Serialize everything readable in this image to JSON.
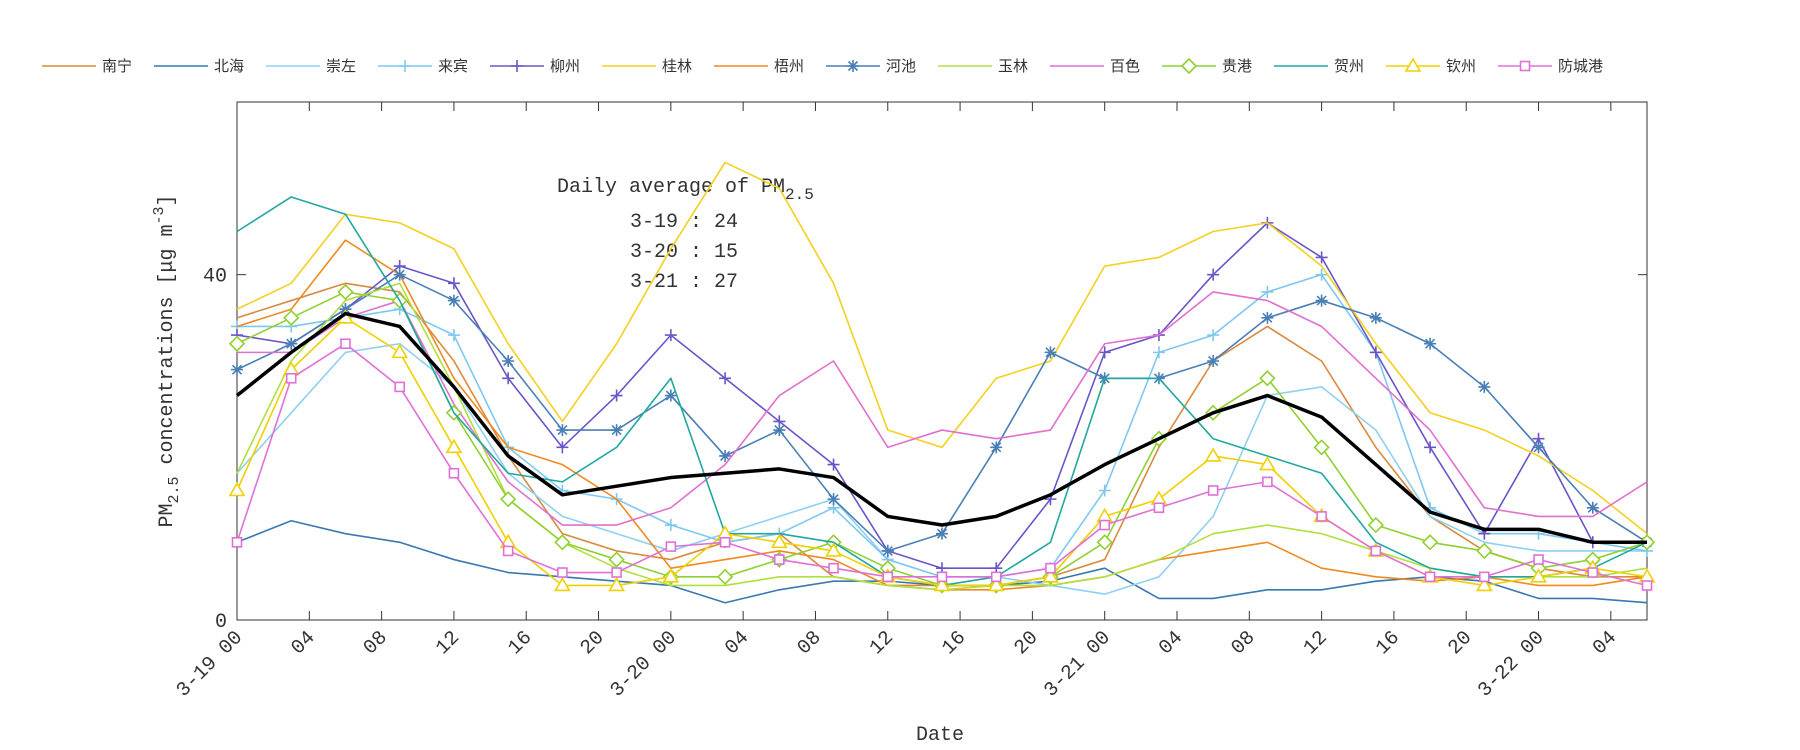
{
  "chart_data": {
    "type": "line",
    "x_label": "Date",
    "y_label": {
      "main": "PM",
      "sub": "2.5",
      "mid": " concentrations [μg m",
      "sup": "-3",
      "end": "]"
    },
    "annotation": {
      "title": "Daily average of PM",
      "title_sub": "2.5",
      "lines": [
        "3-19 : 24",
        "3-20 : 15",
        "3-21 : 27"
      ]
    },
    "x": [
      0,
      3,
      6,
      9,
      12,
      15,
      18,
      21,
      24,
      27,
      30,
      33,
      36,
      39,
      42,
      45,
      48,
      51,
      54,
      57,
      60,
      63,
      66,
      69,
      72,
      75,
      78
    ],
    "xlim": [
      0,
      78
    ],
    "xticks": [
      {
        "value": 0,
        "label": "3-19 00"
      },
      {
        "value": 4,
        "label": "04"
      },
      {
        "value": 8,
        "label": "08"
      },
      {
        "value": 12,
        "label": "12"
      },
      {
        "value": 16,
        "label": "16"
      },
      {
        "value": 20,
        "label": "20"
      },
      {
        "value": 24,
        "label": "3-20 00"
      },
      {
        "value": 28,
        "label": "04"
      },
      {
        "value": 32,
        "label": "08"
      },
      {
        "value": 36,
        "label": "12"
      },
      {
        "value": 40,
        "label": "16"
      },
      {
        "value": 44,
        "label": "20"
      },
      {
        "value": 48,
        "label": "3-21 00"
      },
      {
        "value": 52,
        "label": "04"
      },
      {
        "value": 56,
        "label": "08"
      },
      {
        "value": 60,
        "label": "12"
      },
      {
        "value": 64,
        "label": "16"
      },
      {
        "value": 68,
        "label": "20"
      },
      {
        "value": 72,
        "label": "3-22 00"
      },
      {
        "value": 76,
        "label": "04"
      }
    ],
    "ylim": [
      0,
      60
    ],
    "yticks": [
      0,
      40
    ],
    "series": [
      {
        "name": "南宁",
        "color": "#d98a3e",
        "values": [
          35,
          37,
          39,
          38,
          30,
          19,
          10,
          8,
          7,
          9,
          10,
          5,
          4,
          4,
          4,
          5,
          7,
          20,
          30,
          34,
          30,
          20,
          12,
          8,
          6,
          5,
          5
        ]
      },
      {
        "name": "北海",
        "color": "#3a78b0",
        "values": [
          9,
          11.5,
          10,
          9,
          7,
          5.5,
          5,
          4.5,
          4,
          2,
          3.5,
          4.5,
          4.5,
          4,
          4,
          4.5,
          6,
          2.5,
          2.5,
          3.5,
          3.5,
          4.5,
          5,
          4.5,
          2.5,
          2.5,
          2
        ]
      },
      {
        "name": "崇左",
        "color": "#8fd0f0",
        "values": [
          17,
          24,
          31,
          32,
          27,
          17,
          12,
          10,
          8,
          10,
          12,
          14,
          7,
          5,
          5,
          4,
          3,
          5,
          12,
          26,
          27,
          22,
          12,
          9,
          8,
          8,
          8
        ]
      },
      {
        "name": "来宾",
        "color": "#7ec8f0",
        "marker": "plus",
        "values": [
          34,
          34,
          35,
          36,
          33,
          20,
          15,
          14,
          11,
          9,
          10,
          13,
          7,
          5,
          5,
          6,
          15,
          31,
          33,
          38,
          40,
          31,
          13,
          10,
          10,
          9,
          8
        ]
      },
      {
        "name": "柳州",
        "color": "#6a55c8",
        "marker": "plus",
        "values": [
          33,
          32,
          36,
          41,
          39,
          28,
          20,
          26,
          33,
          28,
          23,
          18,
          8,
          6,
          6,
          14,
          31,
          33,
          40,
          46,
          42,
          31,
          20,
          10,
          21,
          9,
          9
        ]
      },
      {
        "name": "桂林",
        "color": "#f5d020",
        "values": [
          36,
          39,
          47,
          46,
          43,
          32,
          23,
          32,
          43,
          53,
          50,
          39,
          22,
          20,
          28,
          30,
          41,
          42,
          45,
          46,
          41,
          32,
          24,
          22,
          19,
          15,
          10
        ]
      },
      {
        "name": "梧州",
        "color": "#f08a20",
        "values": [
          34,
          36,
          44,
          40,
          28,
          20,
          18,
          14,
          6,
          7,
          8,
          7,
          4,
          3.5,
          3.5,
          4,
          5,
          7,
          8,
          9,
          6,
          5,
          4.5,
          5,
          4,
          4,
          5
        ]
      },
      {
        "name": "河池",
        "color": "#4a7fb5",
        "marker": "star",
        "values": [
          29,
          32,
          36,
          40,
          37,
          30,
          22,
          22,
          26,
          19,
          22,
          14,
          8,
          10,
          20,
          31,
          28,
          28,
          30,
          35,
          37,
          35,
          32,
          27,
          20,
          13,
          9
        ]
      },
      {
        "name": "玉林",
        "color": "#b0e040",
        "values": [
          17,
          30,
          37,
          39,
          27,
          14,
          9,
          6,
          4,
          4,
          5,
          5,
          4,
          3.5,
          4,
          4,
          5,
          7,
          10,
          11,
          10,
          8,
          6,
          5,
          5,
          5,
          6
        ]
      },
      {
        "name": "百色",
        "color": "#e070d0",
        "values": [
          31,
          31,
          35,
          37,
          25,
          16,
          11,
          11,
          13,
          18,
          26,
          30,
          20,
          22,
          21,
          22,
          32,
          33,
          38,
          37,
          34,
          28,
          22,
          13,
          12,
          12,
          16
        ]
      },
      {
        "name": "贵港",
        "color": "#90d030",
        "marker": "diamond",
        "values": [
          32,
          35,
          38,
          37,
          24,
          14,
          9,
          7,
          5,
          5,
          7,
          9,
          6,
          4,
          4,
          5,
          9,
          21,
          24,
          28,
          20,
          11,
          9,
          8,
          6,
          7,
          9
        ]
      },
      {
        "name": "贺州",
        "color": "#20a8a0",
        "values": [
          45,
          49,
          47,
          37,
          24,
          17,
          16,
          20,
          28,
          10,
          10,
          9,
          5,
          4,
          5,
          9,
          28,
          28,
          21,
          19,
          17,
          9,
          6,
          5,
          5,
          6,
          9
        ]
      },
      {
        "name": "钦州",
        "color": "#f0d000",
        "marker": "triangle",
        "values": [
          15,
          29,
          35,
          31,
          20,
          9,
          4,
          4,
          5,
          10,
          9,
          8,
          5,
          4,
          4,
          5,
          12,
          14,
          19,
          18,
          12,
          8,
          5,
          4,
          5,
          6,
          5
        ]
      },
      {
        "name": "防城港",
        "color": "#e070d8",
        "marker": "square",
        "values": [
          9,
          28,
          32,
          27,
          17,
          8,
          5.5,
          5.5,
          8.5,
          9,
          7,
          6,
          5,
          5,
          5,
          6,
          11,
          13,
          15,
          16,
          12,
          8,
          5,
          5,
          7,
          5.5,
          4
        ]
      },
      {
        "color": "#000000",
        "line_width": 3.5,
        "values": [
          26,
          31,
          35.5,
          34,
          27,
          19,
          14.5,
          15.5,
          16.5,
          17,
          17.5,
          16.5,
          12,
          11,
          12,
          14.5,
          18,
          21,
          24,
          26,
          23.5,
          18,
          12.5,
          10.5,
          10.5,
          9,
          9
        ]
      }
    ]
  }
}
